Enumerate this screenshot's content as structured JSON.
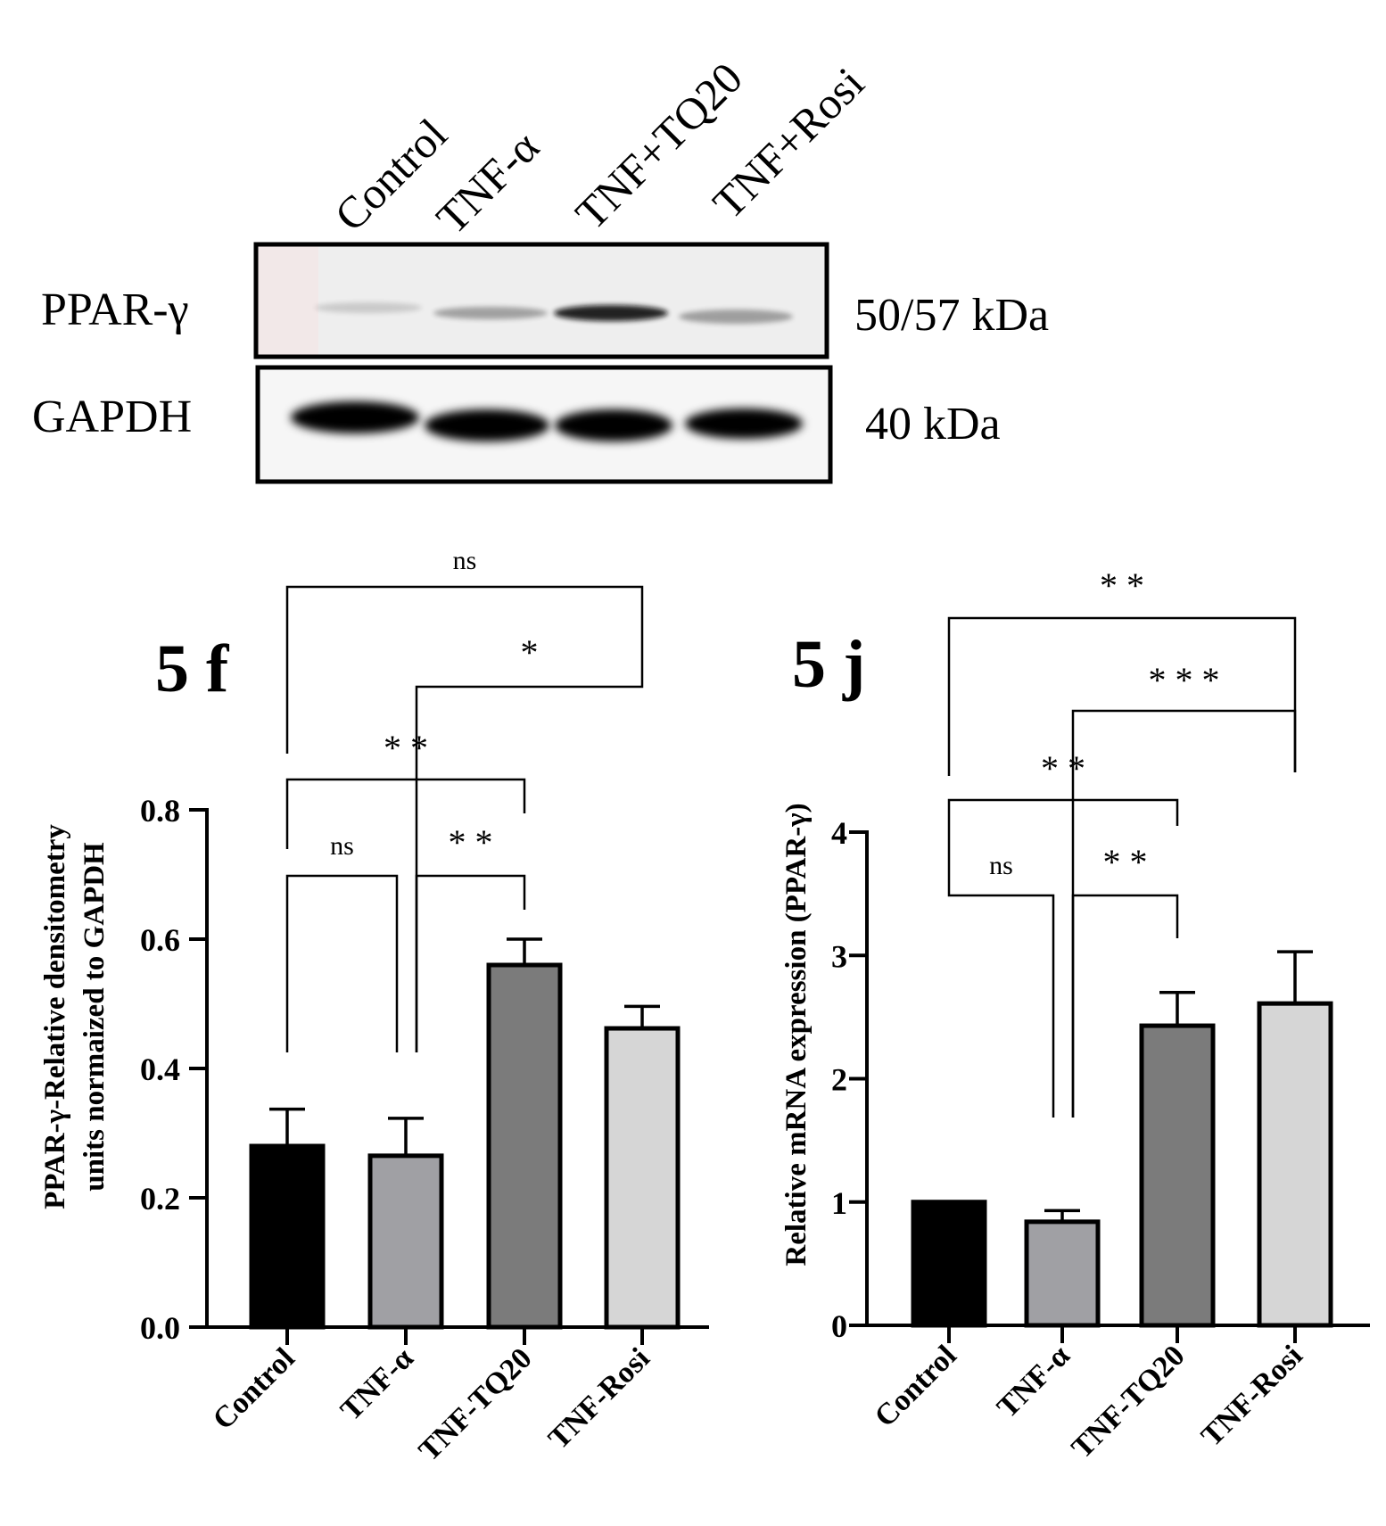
{
  "blot": {
    "lane_labels": [
      "Control",
      "TNF-α",
      "TNF+TQ20",
      "TNF+Rosi"
    ],
    "rows": [
      {
        "label": "PPAR-γ",
        "size": "50/57 kDa",
        "band_intensity": [
          0.15,
          0.35,
          0.9,
          0.35
        ]
      },
      {
        "label": "GAPDH",
        "size": "40 kDa",
        "band_intensity": [
          1,
          1,
          1,
          1
        ]
      }
    ]
  },
  "chart_data": [
    {
      "type": "bar",
      "panel_label": "5 f",
      "categories": [
        "Control",
        "TNF-α",
        "TNF-TQ20",
        "TNF-Rosi"
      ],
      "values": [
        0.28,
        0.265,
        0.56,
        0.462
      ],
      "errors": [
        0.057,
        0.058,
        0.04,
        0.034
      ],
      "bar_colors": [
        "#000000",
        "#a0a0a4",
        "#7b7b7b",
        "#d6d6d6"
      ],
      "ylabel_lines": [
        "PPAR-γ-Relative densitometry",
        "units normaized to GAPDH"
      ],
      "ylim": [
        0,
        0.8
      ],
      "yticks": [
        0,
        0.2,
        0.4,
        0.6,
        0.8
      ],
      "ytick_labels": [
        "0.0",
        "0.2",
        "0.4",
        "0.6",
        "0.8"
      ],
      "comparisons": [
        {
          "from": 0,
          "to": 1,
          "label": "ns"
        },
        {
          "from": 1,
          "to": 2,
          "label": "* *"
        },
        {
          "from": 0,
          "to": 2,
          "label": "* *"
        },
        {
          "from": 1,
          "to": 3,
          "label": "*"
        },
        {
          "from": 0,
          "to": 3,
          "label": "ns"
        }
      ]
    },
    {
      "type": "bar",
      "panel_label": "5 j",
      "categories": [
        "Control",
        "TNF-α",
        "TNF-TQ20",
        "TNF-Rosi"
      ],
      "values": [
        1.0,
        0.84,
        2.43,
        2.61
      ],
      "errors": [
        0,
        0.09,
        0.27,
        0.42
      ],
      "bar_colors": [
        "#000000",
        "#a0a0a4",
        "#7b7b7b",
        "#d6d6d6"
      ],
      "ylabel_lines": [
        "Relative mRNA expression (PPAR-γ)"
      ],
      "ylim": [
        0,
        4
      ],
      "yticks": [
        0,
        1,
        2,
        3,
        4
      ],
      "ytick_labels": [
        "0",
        "1",
        "2",
        "3",
        "4"
      ],
      "comparisons": [
        {
          "from": 0,
          "to": 1,
          "label": "ns"
        },
        {
          "from": 1,
          "to": 2,
          "label": "* *"
        },
        {
          "from": 0,
          "to": 2,
          "label": "* *"
        },
        {
          "from": 1,
          "to": 3,
          "label": "* * *"
        },
        {
          "from": 0,
          "to": 3,
          "label": "* *"
        }
      ]
    }
  ]
}
